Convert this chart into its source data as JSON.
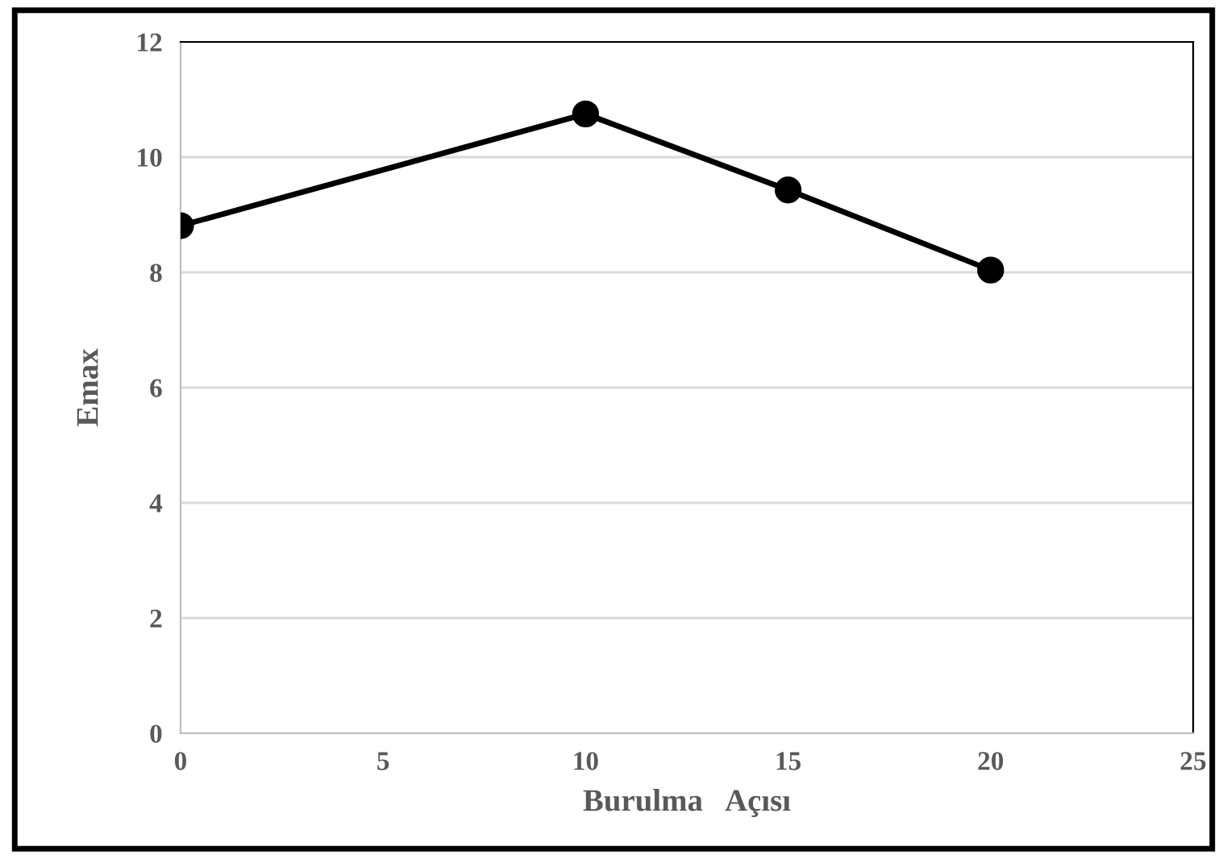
{
  "chart_data": {
    "type": "line",
    "xlabel": "Burulma   Açısı",
    "ylabel": "Emax",
    "x": [
      0,
      10,
      15,
      20
    ],
    "series": [
      {
        "color": "#000000",
        "values": [
          8.81,
          10.75,
          9.43,
          8.04
        ]
      }
    ],
    "xlim": [
      0,
      25
    ],
    "xticks": [
      0,
      5,
      10,
      15,
      20,
      25
    ],
    "ylim": [
      0,
      12
    ],
    "yticks": [
      0,
      2,
      4,
      6,
      8,
      10,
      12
    ],
    "grid": "y",
    "marker": "circle",
    "line_style": "solid",
    "legend": false
  }
}
